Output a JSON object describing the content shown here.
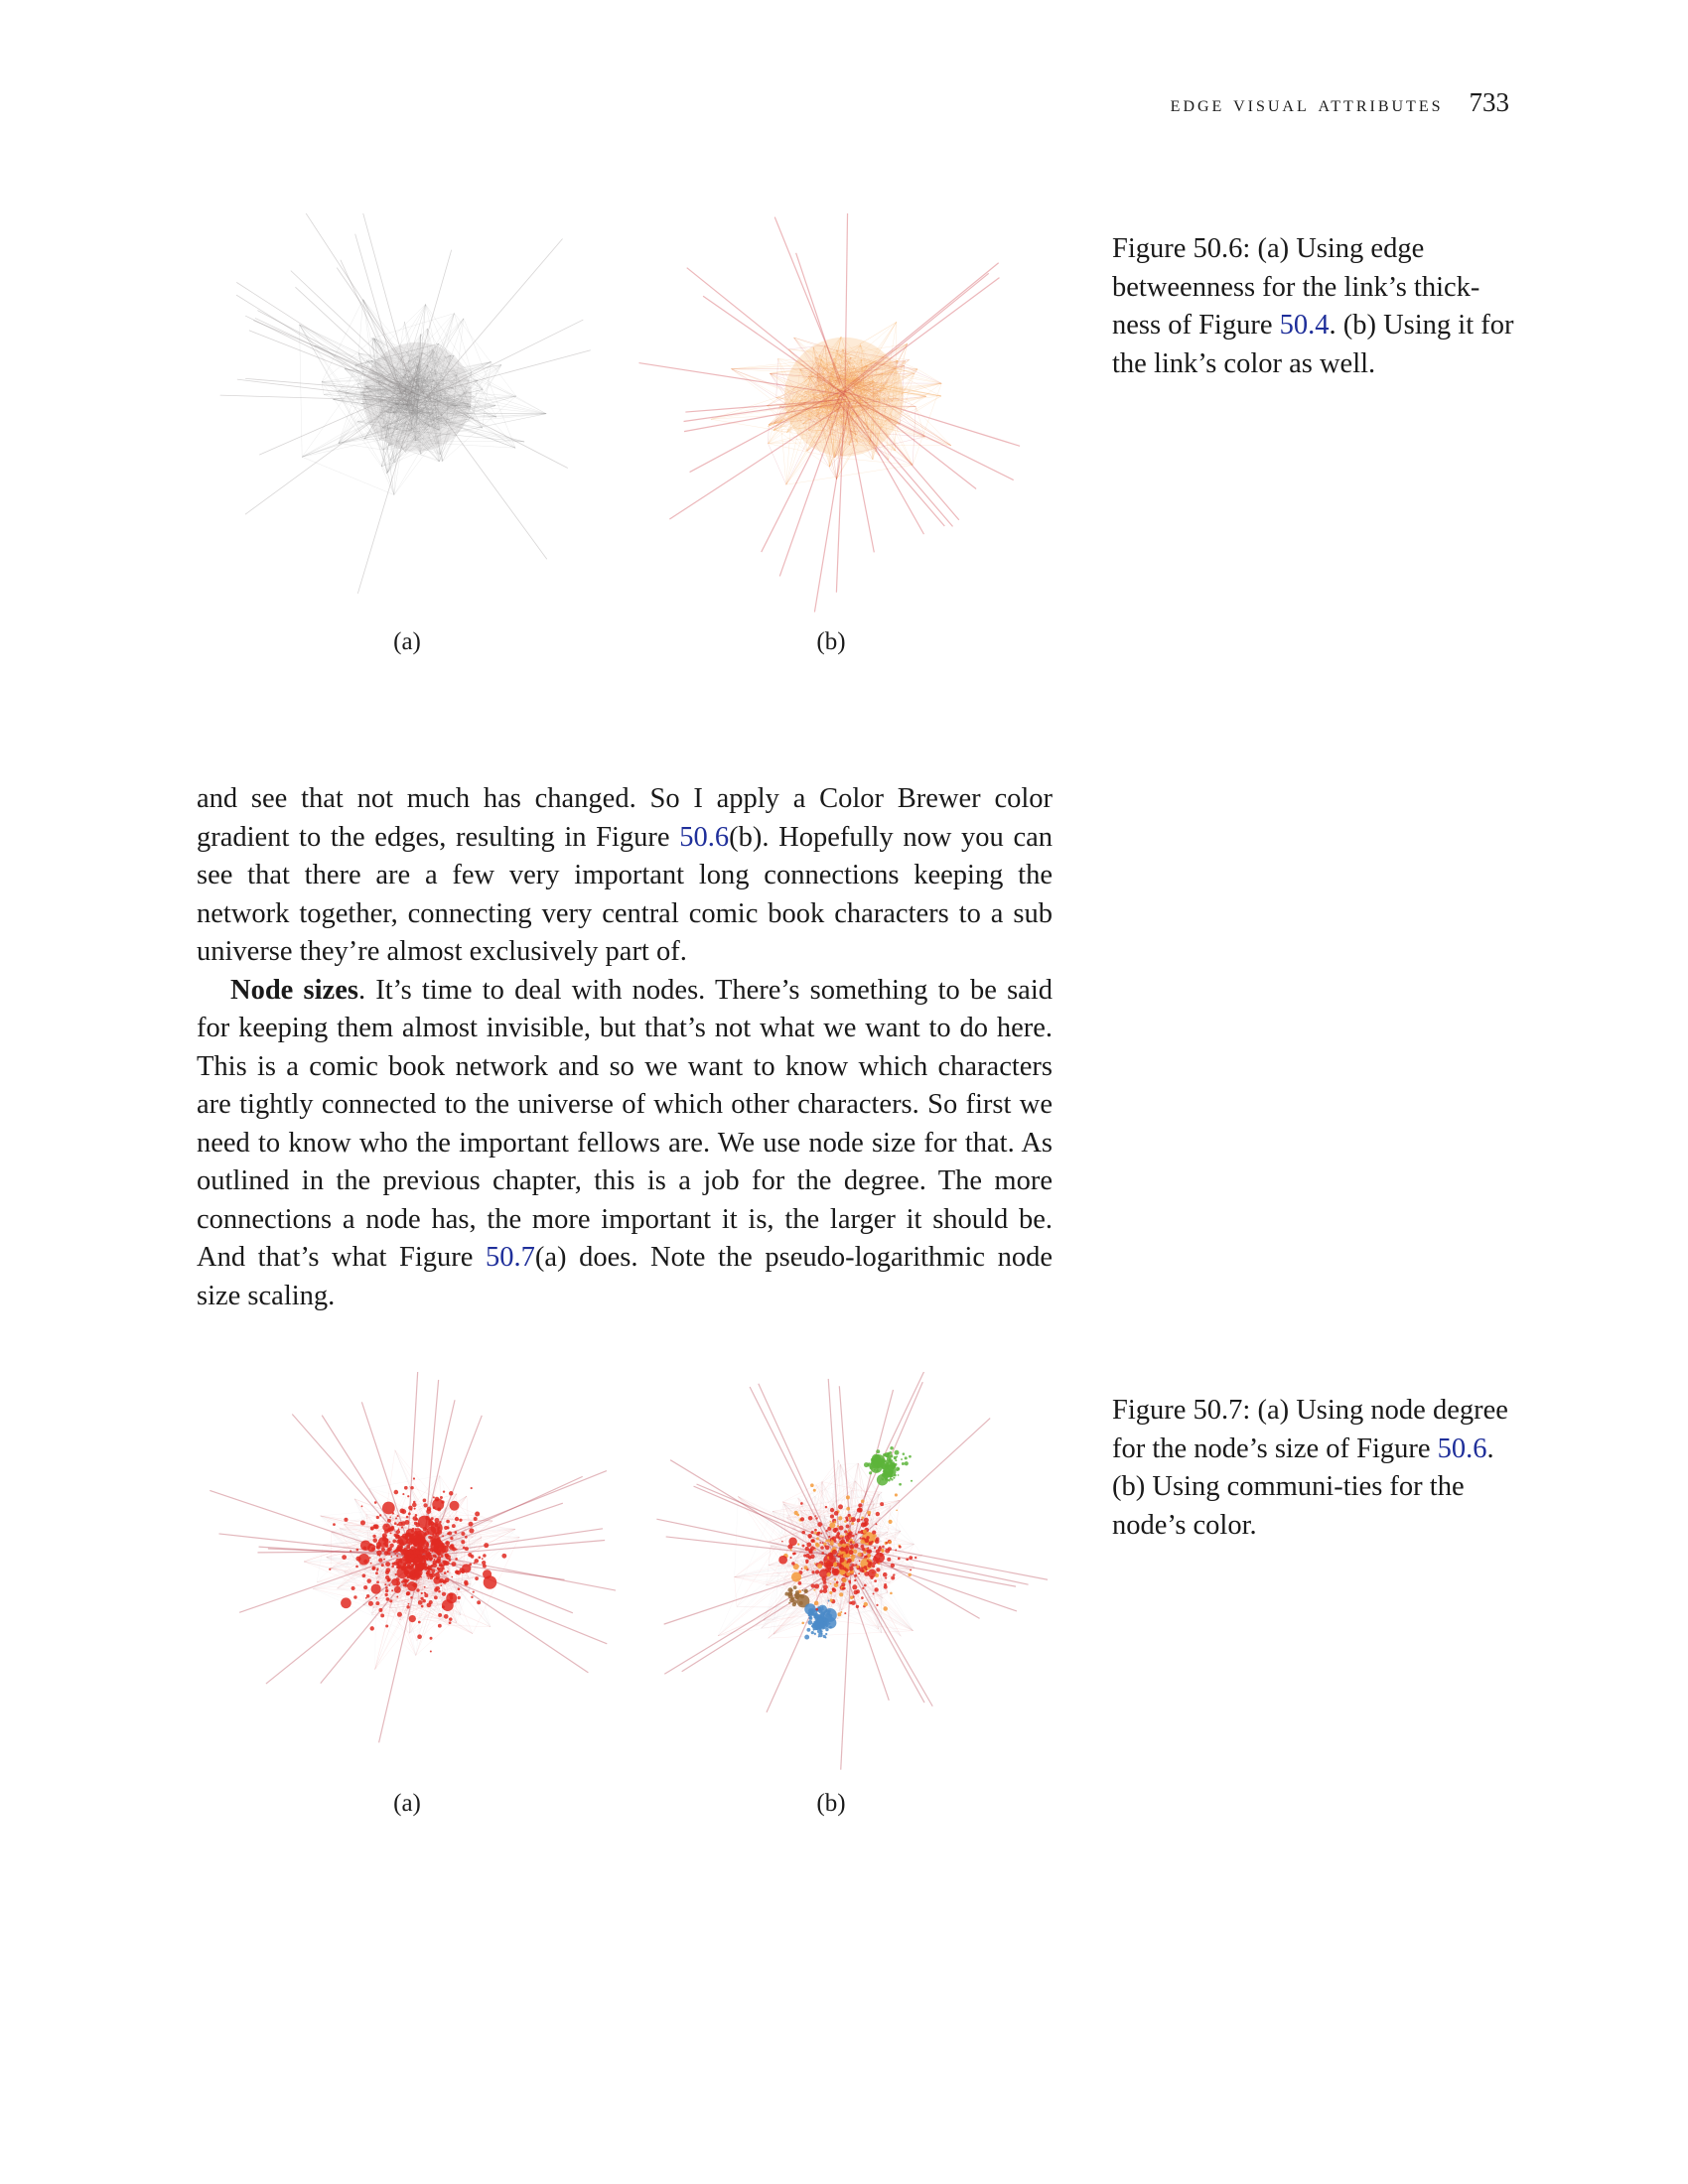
{
  "header": {
    "running_title": "edge visual attributes",
    "page_number": "733"
  },
  "figure_50_6": {
    "label_a": "(a)",
    "label_b": "(b)",
    "caption": {
      "prefix": "Figure 50.6: (a) Using edge betweenness for the link’s thick-ness of Figure ",
      "ref": "50.4",
      "suffix": ". (b) Using it for the link’s color as well."
    },
    "panel_a_colors": {
      "edge": "#8c8888"
    },
    "panel_b_colors": {
      "edge_light": "#f6a04d",
      "edge_dark": "#c8323a"
    }
  },
  "paragraph_1": {
    "text_1": "and see that not much has changed. So I apply a Color Brewer color gradient to the edges, resulting in Figure ",
    "ref": "50.6",
    "text_2": "(b). Hopefully now you can see that there are a few very important long connections keeping the network together, connecting very central comic book characters to a sub universe they’re almost exclusively part of."
  },
  "paragraph_2": {
    "lead": "Node sizes",
    "text_1": ". It’s time to deal with nodes. There’s something to be said for keeping them almost invisible, but that’s not what we want to do here. This is a comic book network and so we want to know which characters are tightly connected to the universe of which other characters. So first we need to know who the important fellows are. We use node size for that. As outlined in the previous chapter, this is a job for the degree. The more connections a node has, the more important it is, the larger it should be. And that’s what Figure ",
    "ref": "50.7",
    "text_2": "(a) does. Note the pseudo-logarithmic node size scaling."
  },
  "figure_50_7": {
    "label_a": "(a)",
    "label_b": "(b)",
    "caption": {
      "prefix": "Figure 50.7: (a) Using node degree for the node’s size of Figure ",
      "ref": "50.6",
      "suffix": ". (b) Using communi-ties for the node’s color."
    },
    "panel_a_colors": {
      "node": "#e02a22"
    },
    "panel_b_colors": {
      "red": "#e02a22",
      "green": "#5cb43a",
      "blue": "#4a8ac8",
      "orange": "#f49a3a",
      "brown": "#9a6b3a"
    }
  }
}
